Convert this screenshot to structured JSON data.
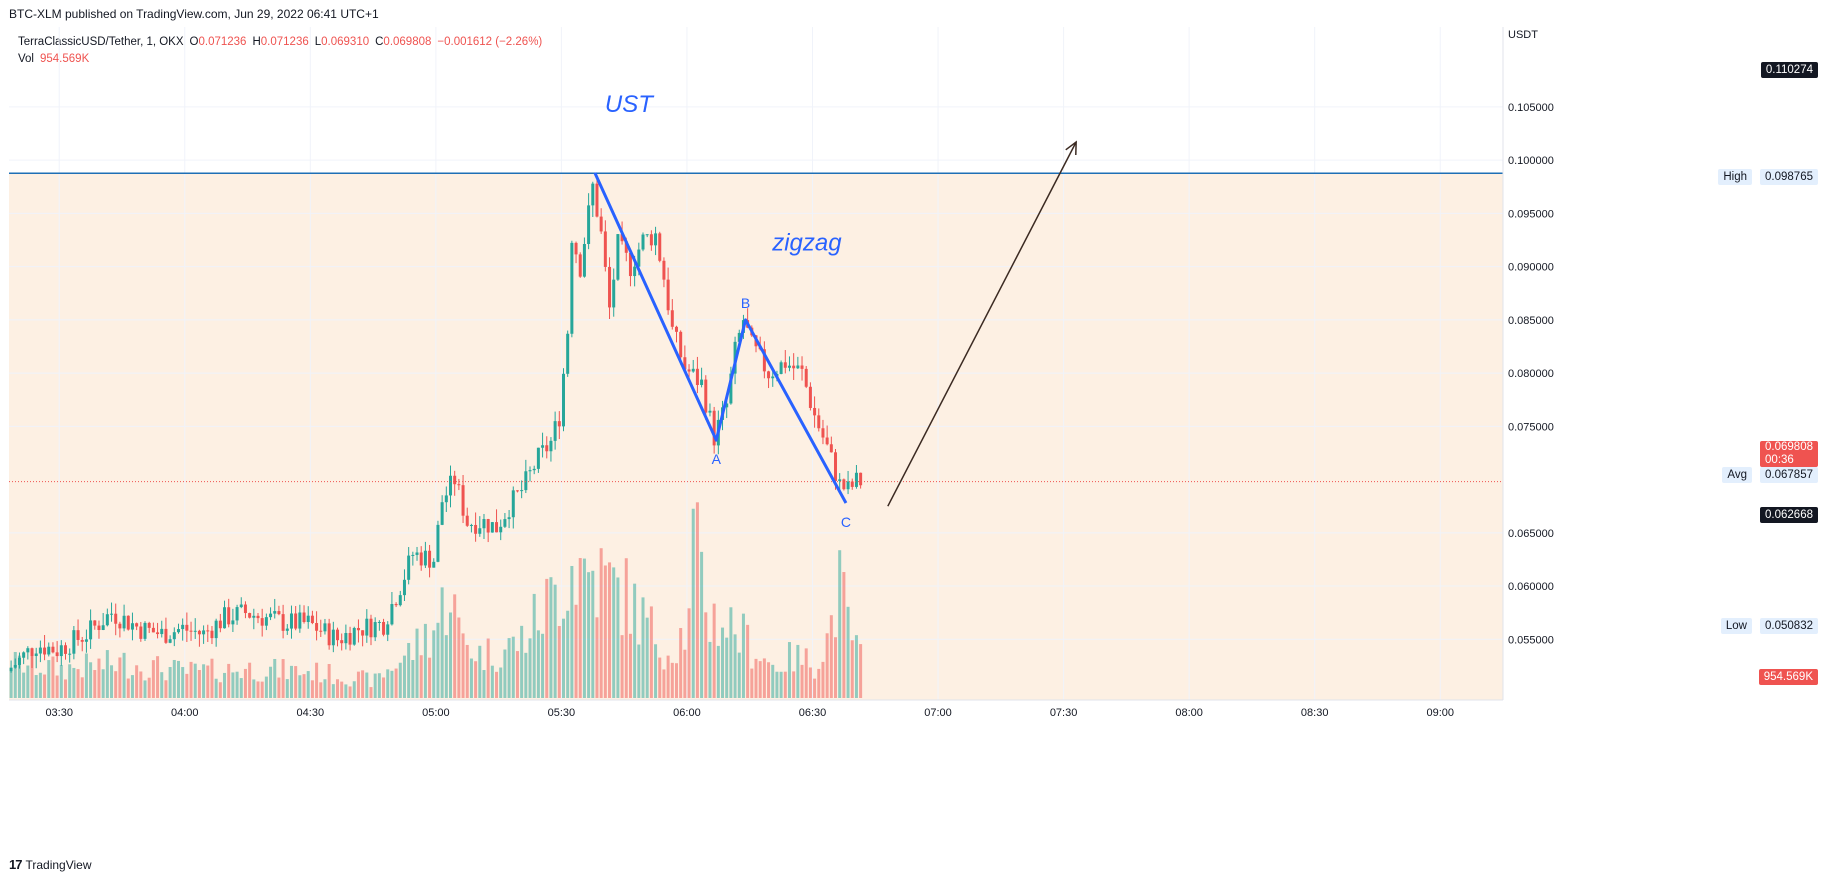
{
  "header": {
    "published": "BTC-XLM published on TradingView.com, Jun 29, 2022 06:41 UTC+1"
  },
  "legend": {
    "symbol": "TerraClassicUSD/Tether, 1, OKX",
    "o_key": "O",
    "o_val": "0.071236",
    "h_key": "H",
    "h_val": "0.071236",
    "l_key": "L",
    "l_val": "0.069310",
    "c_key": "C",
    "c_val": "0.069808",
    "change": "−0.001612 (−2.26%)",
    "vol_key": "Vol",
    "vol_val": "954.569K"
  },
  "axis": {
    "currency": "USDT",
    "price_ticks": [
      "0.105000",
      "0.100000",
      "0.095000",
      "0.090000",
      "0.085000",
      "0.080000",
      "0.075000",
      "0.065000",
      "0.060000",
      "0.055000"
    ],
    "time_ticks": [
      "03:30",
      "04:00",
      "04:30",
      "05:00",
      "05:30",
      "06:00",
      "06:30",
      "07:00",
      "07:30",
      "08:00",
      "08:30",
      "09:00"
    ]
  },
  "price_labels": {
    "top": "0.110274",
    "high_tag": "High",
    "high": "0.098765",
    "last": "0.069808",
    "countdown": "00:36",
    "avg_tag": "Avg",
    "avg": "0.067857",
    "lower": "0.062668",
    "low_tag": "Low",
    "low": "0.050832",
    "volume": "954.569K"
  },
  "annotations": {
    "title": "UST",
    "pattern": "zigzag",
    "point_a": "A",
    "point_b": "B",
    "point_c": "C"
  },
  "colors": {
    "up": "#26a69a",
    "down": "#ef5350",
    "pattern_line": "#2962ff",
    "high_line": "#1e6fb5",
    "zone_fill": "#fdf0e3",
    "arrow": "#3b2a22",
    "annotation_text": "#2962ff"
  },
  "brand": {
    "name": "TradingView"
  },
  "chart_data": {
    "type": "candlestick",
    "title": "TerraClassicUSD/Tether, 1, OKX",
    "ylabel": "USDT",
    "ylim": [
      0.0493,
      0.1125
    ],
    "x_range": [
      "03:18",
      "09:15"
    ],
    "high_line": 0.098765,
    "pattern_points": [
      {
        "label": "",
        "time": "05:38",
        "price": 0.0988
      },
      {
        "label": "A",
        "time": "06:07",
        "price": 0.0737
      },
      {
        "label": "B",
        "time": "06:14",
        "price": 0.085
      },
      {
        "label": "C",
        "time": "06:38",
        "price": 0.0678
      }
    ],
    "projection_arrow": {
      "from": {
        "time": "06:48",
        "price": 0.0675
      },
      "to": {
        "time": "07:33",
        "price": 0.1017
      }
    },
    "price_anchors": [
      [
        "03:18",
        0.052
      ],
      [
        "03:25",
        0.0545
      ],
      [
        "03:30",
        0.054
      ],
      [
        "03:37",
        0.0555
      ],
      [
        "03:43",
        0.0575
      ],
      [
        "03:50",
        0.056
      ],
      [
        "03:55",
        0.0555
      ],
      [
        "04:00",
        0.056
      ],
      [
        "04:05",
        0.0555
      ],
      [
        "04:10",
        0.057
      ],
      [
        "04:15",
        0.0575
      ],
      [
        "04:20",
        0.057
      ],
      [
        "04:25",
        0.0565
      ],
      [
        "04:30",
        0.0565
      ],
      [
        "04:37",
        0.055
      ],
      [
        "04:42",
        0.056
      ],
      [
        "04:48",
        0.0565
      ],
      [
        "04:52",
        0.06
      ],
      [
        "04:55",
        0.063
      ],
      [
        "05:00",
        0.0625
      ],
      [
        "05:02",
        0.068
      ],
      [
        "05:05",
        0.07
      ],
      [
        "05:08",
        0.066
      ],
      [
        "05:12",
        0.066
      ],
      [
        "05:15",
        0.0655
      ],
      [
        "05:18",
        0.0675
      ],
      [
        "05:21",
        0.069
      ],
      [
        "05:25",
        0.072
      ],
      [
        "05:28",
        0.0735
      ],
      [
        "05:30",
        0.076
      ],
      [
        "05:32",
        0.084
      ],
      [
        "05:33",
        0.093
      ],
      [
        "05:35",
        0.09
      ],
      [
        "05:37",
        0.095
      ],
      [
        "05:38",
        0.0975
      ],
      [
        "05:40",
        0.093
      ],
      [
        "05:42",
        0.086
      ],
      [
        "05:44",
        0.092
      ],
      [
        "05:47",
        0.09
      ],
      [
        "05:50",
        0.0925
      ],
      [
        "05:53",
        0.093
      ],
      [
        "05:55",
        0.089
      ],
      [
        "05:57",
        0.084
      ],
      [
        "06:00",
        0.0805
      ],
      [
        "06:04",
        0.079
      ],
      [
        "06:07",
        0.074
      ],
      [
        "06:10",
        0.077
      ],
      [
        "06:12",
        0.082
      ],
      [
        "06:14",
        0.085
      ],
      [
        "06:16",
        0.0825
      ],
      [
        "06:20",
        0.08
      ],
      [
        "06:24",
        0.081
      ],
      [
        "06:28",
        0.08
      ],
      [
        "06:31",
        0.076
      ],
      [
        "06:34",
        0.073
      ],
      [
        "06:37",
        0.0695
      ],
      [
        "06:39",
        0.069
      ],
      [
        "06:41",
        0.0698
      ]
    ],
    "volume_anchors": [
      [
        "03:18",
        12
      ],
      [
        "03:30",
        10
      ],
      [
        "03:45",
        12
      ],
      [
        "04:00",
        9
      ],
      [
        "04:15",
        10
      ],
      [
        "04:30",
        9
      ],
      [
        "04:45",
        6
      ],
      [
        "04:55",
        18
      ],
      [
        "05:00",
        26
      ],
      [
        "05:03",
        39
      ],
      [
        "05:05",
        22
      ],
      [
        "05:10",
        15
      ],
      [
        "05:15",
        16
      ],
      [
        "05:20",
        20
      ],
      [
        "05:25",
        30
      ],
      [
        "05:30",
        40
      ],
      [
        "05:32",
        46
      ],
      [
        "05:38",
        42
      ],
      [
        "05:45",
        35
      ],
      [
        "05:50",
        25
      ],
      [
        "05:55",
        16
      ],
      [
        "06:00",
        25
      ],
      [
        "06:01",
        54
      ],
      [
        "06:05",
        28
      ],
      [
        "06:10",
        25
      ],
      [
        "06:15",
        18
      ],
      [
        "06:20",
        11
      ],
      [
        "06:25",
        14
      ],
      [
        "06:30",
        12
      ],
      [
        "06:33",
        20
      ],
      [
        "06:36",
        38
      ],
      [
        "06:38",
        25
      ],
      [
        "06:41",
        14
      ]
    ]
  }
}
